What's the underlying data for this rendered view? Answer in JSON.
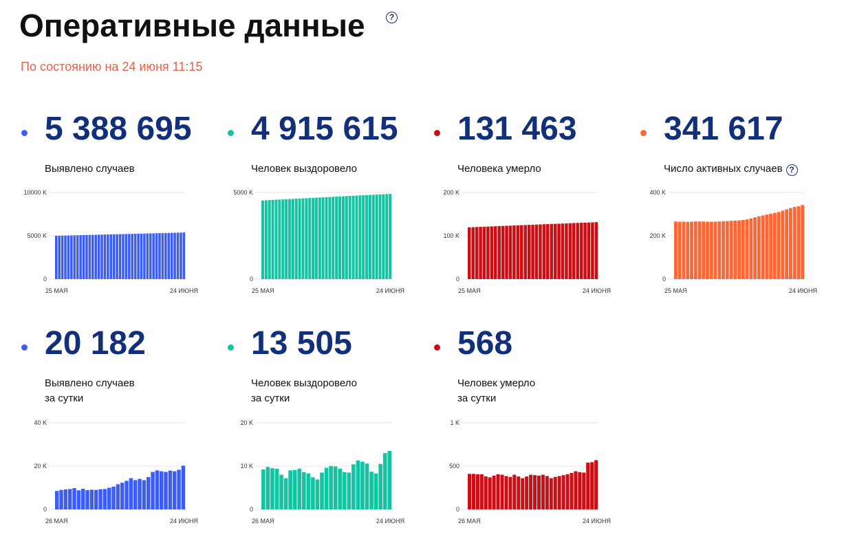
{
  "header": {
    "title": "Оперативные данные",
    "help_icon": "question-circle-icon",
    "status": "По состоянию на 24 июня 11:15"
  },
  "stats": [
    {
      "id": "cases",
      "value": "5 388 695",
      "label_line1": "Выявлено случаев",
      "label_line2": "",
      "color": "#3b5cf5",
      "has_help": false
    },
    {
      "id": "recovered",
      "value": "4 915 615",
      "label_line1": "Человек выздоровело",
      "label_line2": "",
      "color": "#13c4a3",
      "has_help": false
    },
    {
      "id": "deaths",
      "value": "131 463",
      "label_line1": "Человека умерло",
      "label_line2": "",
      "color": "#cc0d14",
      "has_help": false
    },
    {
      "id": "active",
      "value": "341 617",
      "label_line1": "Число активных случаев",
      "label_line2": "",
      "color": "#ff6633",
      "has_help": true
    },
    {
      "id": "daily-cases",
      "value": "20 182",
      "label_line1": "Выявлено случаев",
      "label_line2": "за сутки",
      "color": "#3b5cf5",
      "has_help": false
    },
    {
      "id": "daily-recovered",
      "value": "13 505",
      "label_line1": "Человек выздоровело",
      "label_line2": "за сутки",
      "color": "#13c4a3",
      "has_help": false
    },
    {
      "id": "daily-deaths",
      "value": "568",
      "label_line1": "Человек умерло",
      "label_line2": "за сутки",
      "color": "#cc0d14",
      "has_help": false
    }
  ],
  "chart_data": [
    {
      "type": "bar",
      "series": [
        {
          "values": [
            5000,
            5009,
            5018,
            5027,
            5036,
            5045,
            5054,
            5063,
            5072,
            5081,
            5090,
            5099,
            5108,
            5117,
            5126,
            5135,
            5144,
            5153,
            5162,
            5171,
            5180,
            5189,
            5198,
            5207,
            5216,
            5225,
            5234,
            5243,
            5252,
            5261,
            5270,
            5279,
            5288,
            5297,
            5306,
            5315,
            5324,
            5333,
            5342,
            5351,
            5360,
            5369,
            5389
          ]
        }
      ],
      "ytick_labels": [
        "0",
        "5000 K",
        "10000 K"
      ],
      "ymax": 10000,
      "x_start_label": "25 МАЯ",
      "x_end_label": "24 ИЮНЯ",
      "color": "#3b5cf5"
    },
    {
      "type": "bar",
      "series": [
        {
          "values": [
            4540,
            4550,
            4560,
            4570,
            4580,
            4590,
            4600,
            4610,
            4620,
            4630,
            4640,
            4650,
            4660,
            4670,
            4680,
            4690,
            4700,
            4710,
            4720,
            4730,
            4740,
            4750,
            4760,
            4770,
            4780,
            4790,
            4800,
            4810,
            4820,
            4830,
            4840,
            4850,
            4860,
            4870,
            4880,
            4890,
            4900,
            4910,
            4916
          ]
        }
      ],
      "ytick_labels": [
        "0",
        "5000 K"
      ],
      "ymax": 5000,
      "x_start_label": "25 МАЯ",
      "x_end_label": "24 ИЮНЯ",
      "color": "#13c4a3"
    },
    {
      "type": "bar",
      "series": [
        {
          "values": [
            119.5,
            119.9,
            120.2,
            120.6,
            121.0,
            121.3,
            121.7,
            122.0,
            122.4,
            122.7,
            123.1,
            123.4,
            123.8,
            124.1,
            124.5,
            124.8,
            125.2,
            125.5,
            125.9,
            126.2,
            126.6,
            126.9,
            127.3,
            127.6,
            128.0,
            128.3,
            128.7,
            129.0,
            129.4,
            129.7,
            130.1,
            130.4,
            130.8,
            131.1,
            131.5
          ]
        }
      ],
      "ytick_labels": [
        "0",
        "100 K",
        "200 K"
      ],
      "ymax": 200,
      "x_start_label": "25 МАЯ",
      "x_end_label": "24 ИЮНЯ",
      "color": "#cc0d14"
    },
    {
      "type": "bar",
      "series": [
        {
          "values": [
            266,
            265,
            265,
            264,
            265,
            266,
            266,
            266,
            265,
            265,
            265,
            266,
            267,
            268,
            269,
            270,
            271,
            273,
            276,
            280,
            285,
            290,
            294,
            298,
            302,
            306,
            310,
            316,
            322,
            328,
            333,
            336,
            342
          ]
        }
      ],
      "ytick_labels": [
        "0",
        "200 K",
        "400 K"
      ],
      "ymax": 400,
      "x_start_label": "25 МАЯ",
      "x_end_label": "24 ИЮНЯ",
      "color": "#ff6633"
    },
    {
      "type": "bar",
      "series": [
        {
          "values": [
            8.5,
            9.0,
            9.2,
            9.4,
            9.8,
            8.8,
            9.5,
            8.9,
            9.1,
            9.0,
            9.3,
            9.4,
            10.0,
            10.5,
            11.6,
            12.3,
            13.2,
            14.4,
            13.5,
            14.1,
            13.5,
            14.9,
            17.3,
            18.0,
            17.6,
            17.3,
            17.9,
            17.6,
            18.3,
            20.2
          ]
        }
      ],
      "ytick_labels": [
        "0",
        "20 K",
        "40 K"
      ],
      "ymax": 40,
      "x_start_label": "26 МАЯ",
      "x_end_label": "24 ИЮНЯ",
      "color": "#3b5cf5"
    },
    {
      "type": "bar",
      "series": [
        {
          "values": [
            9.2,
            9.8,
            9.5,
            9.4,
            8.0,
            7.2,
            9.0,
            9.1,
            9.4,
            8.6,
            8.3,
            7.4,
            6.9,
            8.5,
            9.6,
            10.0,
            9.9,
            9.4,
            8.6,
            8.5,
            10.4,
            11.3,
            11.0,
            10.6,
            8.7,
            8.3,
            10.5,
            13.0,
            13.5
          ]
        }
      ],
      "ytick_labels": [
        "0",
        "10 K",
        "20 K"
      ],
      "ymax": 20,
      "x_start_label": "26 МАЯ",
      "x_end_label": "24 ИЮНЯ",
      "color": "#13c4a3"
    },
    {
      "type": "bar",
      "series": [
        {
          "values": [
            410,
            410,
            405,
            405,
            380,
            370,
            390,
            405,
            400,
            385,
            375,
            400,
            380,
            360,
            380,
            400,
            395,
            390,
            400,
            385,
            360,
            375,
            385,
            395,
            405,
            420,
            440,
            430,
            425,
            540,
            545,
            568
          ]
        }
      ],
      "ytick_labels": [
        "0",
        "500",
        "1 K"
      ],
      "ymax": 1000,
      "x_start_label": "26 МАЯ",
      "x_end_label": "24 ИЮНЯ",
      "color": "#cc0d14"
    }
  ]
}
